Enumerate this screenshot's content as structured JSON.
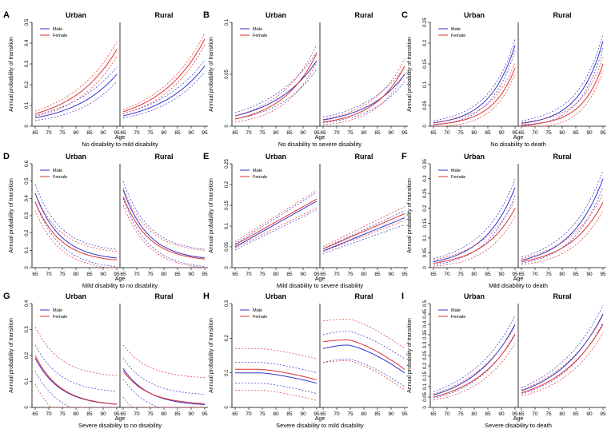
{
  "figure": {
    "y_axis_label": "Annual probability of transition",
    "x_axis_label": "Age",
    "legend_labels": [
      "Male",
      "Female"
    ],
    "colors": {
      "male": "#3333cc",
      "female": "#e03030",
      "frame": "#000000"
    }
  },
  "chart_data": [
    {
      "letter": "A",
      "type": "line",
      "title": "No disability to mild disability",
      "groups": [
        "Urban",
        "Rural"
      ],
      "x": [
        65,
        95
      ],
      "xticks": [
        65,
        70,
        75,
        80,
        85,
        90,
        95
      ],
      "ylim": [
        0,
        0.5
      ],
      "yticks": [
        0,
        0.1,
        0.2,
        0.3,
        0.4,
        0.5
      ],
      "series": {
        "Urban": {
          "male": [
            0.04,
            0.25
          ],
          "female": [
            0.06,
            0.37
          ],
          "ci_male": 0.025,
          "ci_female": 0.025,
          "shape": "exp"
        },
        "Rural": {
          "male": [
            0.05,
            0.29
          ],
          "female": [
            0.07,
            0.42
          ],
          "ci_male": 0.02,
          "ci_female": 0.02,
          "shape": "exp"
        }
      }
    },
    {
      "letter": "B",
      "type": "line",
      "title": "No disability to severe disability",
      "groups": [
        "Urban",
        "Rural"
      ],
      "x": [
        65,
        95
      ],
      "xticks": [
        65,
        70,
        75,
        80,
        85,
        90,
        95
      ],
      "ylim": [
        0,
        0.1
      ],
      "yticks": [
        0,
        0.05,
        0.1
      ],
      "series": {
        "Urban": {
          "male": [
            0.01,
            0.063
          ],
          "female": [
            0.007,
            0.07
          ],
          "ci_male": 0.006,
          "ci_female": 0.006,
          "shape": "exp"
        },
        "Rural": {
          "male": [
            0.006,
            0.05
          ],
          "female": [
            0.004,
            0.058
          ],
          "ci_male": 0.005,
          "ci_female": 0.005,
          "shape": "exp"
        }
      }
    },
    {
      "letter": "C",
      "type": "line",
      "title": "No disability to death",
      "groups": [
        "Urban",
        "Rural"
      ],
      "x": [
        65,
        95
      ],
      "xticks": [
        65,
        70,
        75,
        80,
        85,
        90,
        95
      ],
      "ylim": [
        0,
        0.25
      ],
      "yticks": [
        0,
        0.05,
        0.1,
        0.15,
        0.2,
        0.25
      ],
      "series": {
        "Urban": {
          "male": [
            0.008,
            0.195
          ],
          "female": [
            0.004,
            0.14
          ],
          "ci_male": 0.01,
          "ci_female": 0.01,
          "shape": "exp"
        },
        "Rural": {
          "male": [
            0.007,
            0.205
          ],
          "female": [
            0.003,
            0.15
          ],
          "ci_male": 0.012,
          "ci_female": 0.012,
          "shape": "exp"
        }
      }
    },
    {
      "letter": "D",
      "type": "line",
      "title": "Mild disability to no disability",
      "groups": [
        "Urban",
        "Rural"
      ],
      "x": [
        65,
        95
      ],
      "xticks": [
        65,
        70,
        75,
        80,
        85,
        90,
        95
      ],
      "ylim": [
        0,
        0.6
      ],
      "yticks": [
        0,
        0.1,
        0.2,
        0.3,
        0.4,
        0.5,
        0.6
      ],
      "series": {
        "Urban": {
          "male": [
            0.43,
            0.04
          ],
          "female": [
            0.38,
            0.03
          ],
          "ci_male": 0.05,
          "ci_female": 0.05,
          "shape": "decay"
        },
        "Rural": {
          "male": [
            0.45,
            0.04
          ],
          "female": [
            0.41,
            0.035
          ],
          "ci_male": 0.05,
          "ci_female": 0.05,
          "shape": "decay"
        }
      }
    },
    {
      "letter": "E",
      "type": "line",
      "title": "Mild disability to severe disability",
      "groups": [
        "Urban",
        "Rural"
      ],
      "x": [
        65,
        95
      ],
      "xticks": [
        65,
        70,
        75,
        80,
        85,
        90,
        95
      ],
      "ylim": [
        0,
        0.25
      ],
      "yticks": [
        0,
        0.05,
        0.1,
        0.15,
        0.2,
        0.25
      ],
      "series": {
        "Urban": {
          "male": [
            0.05,
            0.16
          ],
          "female": [
            0.055,
            0.165
          ],
          "ci_male": 0.015,
          "ci_female": 0.015,
          "shape": "linear"
        },
        "Rural": {
          "male": [
            0.04,
            0.12
          ],
          "female": [
            0.045,
            0.13
          ],
          "ci_male": 0.012,
          "ci_female": 0.012,
          "shape": "linear"
        }
      }
    },
    {
      "letter": "F",
      "type": "line",
      "title": "Mild disability to death",
      "groups": [
        "Urban",
        "Rural"
      ],
      "x": [
        65,
        95
      ],
      "xticks": [
        65,
        70,
        75,
        80,
        85,
        90,
        95
      ],
      "ylim": [
        0,
        0.35
      ],
      "yticks": [
        0,
        0.05,
        0.1,
        0.15,
        0.2,
        0.25,
        0.3,
        0.35
      ],
      "series": {
        "Urban": {
          "male": [
            0.02,
            0.27
          ],
          "female": [
            0.015,
            0.2
          ],
          "ci_male": 0.02,
          "ci_female": 0.02,
          "shape": "exp"
        },
        "Rural": {
          "male": [
            0.025,
            0.3
          ],
          "female": [
            0.02,
            0.22
          ],
          "ci_male": 0.02,
          "ci_female": 0.02,
          "shape": "exp"
        }
      }
    },
    {
      "letter": "G",
      "type": "line",
      "title": "Severe disability to no disability",
      "groups": [
        "Urban",
        "Rural"
      ],
      "x": [
        65,
        95
      ],
      "xticks": [
        65,
        70,
        75,
        80,
        85,
        90,
        95
      ],
      "ylim": [
        0,
        0.4
      ],
      "yticks": [
        0,
        0.1,
        0.2,
        0.3,
        0.4
      ],
      "series": {
        "Urban": {
          "male": [
            0.19,
            0.005
          ],
          "female": [
            0.2,
            0.005
          ],
          "ci_male": 0.05,
          "ci_female": 0.11,
          "shape": "decay"
        },
        "Rural": {
          "male": [
            0.15,
            0.005
          ],
          "female": [
            0.14,
            0.01
          ],
          "ci_male": 0.04,
          "ci_female": 0.1,
          "shape": "decay"
        }
      }
    },
    {
      "letter": "H",
      "type": "line",
      "title": "Severe disability to mild disability",
      "groups": [
        "Urban",
        "Rural"
      ],
      "x": [
        65,
        95
      ],
      "xticks": [
        65,
        70,
        75,
        80,
        85,
        90,
        95
      ],
      "ylim": [
        0,
        0.3
      ],
      "yticks": [
        0,
        0.1,
        0.2,
        0.3
      ],
      "series": {
        "Urban": {
          "male": [
            0.1,
            0.07
          ],
          "female": [
            0.11,
            0.08
          ],
          "ci_male": 0.03,
          "ci_female": 0.06,
          "shape": "hump",
          "peak_male": 0.1,
          "peak_female": 0.11
        },
        "Rural": {
          "male": [
            0.17,
            0.1
          ],
          "female": [
            0.19,
            0.11
          ],
          "ci_male": 0.04,
          "ci_female": 0.06,
          "shape": "hump",
          "peak_male": 0.18,
          "peak_female": 0.195
        }
      }
    },
    {
      "letter": "I",
      "type": "line",
      "title": "Severe disability to death",
      "groups": [
        "Urban",
        "Rural"
      ],
      "x": [
        65,
        95
      ],
      "xticks": [
        65,
        70,
        75,
        80,
        85,
        90,
        95
      ],
      "ylim": [
        0,
        0.5
      ],
      "yticks": [
        0,
        0.05,
        0.1,
        0.15,
        0.2,
        0.25,
        0.3,
        0.35,
        0.4,
        0.45,
        0.5
      ],
      "series": {
        "Urban": {
          "male": [
            0.06,
            0.4
          ],
          "female": [
            0.05,
            0.35
          ],
          "ci_male": 0.03,
          "ci_female": 0.03,
          "shape": "exp"
        },
        "Rural": {
          "male": [
            0.08,
            0.45
          ],
          "female": [
            0.07,
            0.4
          ],
          "ci_male": 0.03,
          "ci_female": 0.03,
          "shape": "exp"
        }
      }
    }
  ]
}
